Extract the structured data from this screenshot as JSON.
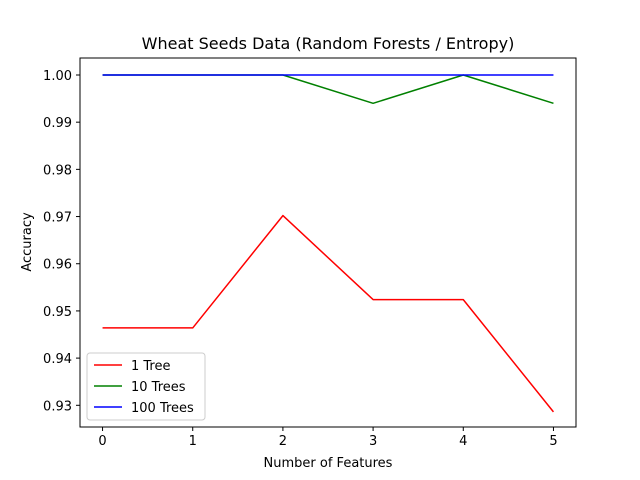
{
  "chart_data": {
    "type": "line",
    "title": "Wheat Seeds Data (Random Forests / Entropy)",
    "xlabel": "Number of Features",
    "ylabel": "Accuracy",
    "x": [
      0,
      1,
      2,
      3,
      4,
      5
    ],
    "xticks": [
      "0",
      "1",
      "2",
      "3",
      "4",
      "5"
    ],
    "xlim": [
      -0.25,
      5.25
    ],
    "yticks": [
      "0.93",
      "0.94",
      "0.95",
      "0.96",
      "0.97",
      "0.98",
      "0.99",
      "1.00"
    ],
    "ytick_values": [
      0.93,
      0.94,
      0.95,
      0.96,
      0.97,
      0.98,
      0.99,
      1.0
    ],
    "ylim": [
      0.9254,
      1.0036
    ],
    "grid": false,
    "legend_position": "lower-left",
    "series": [
      {
        "name": "1 Tree",
        "color": "#ff0000",
        "values": [
          0.9464,
          0.9464,
          0.9702,
          0.9524,
          0.9524,
          0.9286
        ]
      },
      {
        "name": "10 Trees",
        "color": "#008000",
        "values": [
          1.0,
          1.0,
          1.0,
          0.994,
          1.0,
          0.994
        ]
      },
      {
        "name": "100 Trees",
        "color": "#0000ff",
        "values": [
          1.0,
          1.0,
          1.0,
          1.0,
          1.0,
          1.0
        ]
      }
    ]
  }
}
